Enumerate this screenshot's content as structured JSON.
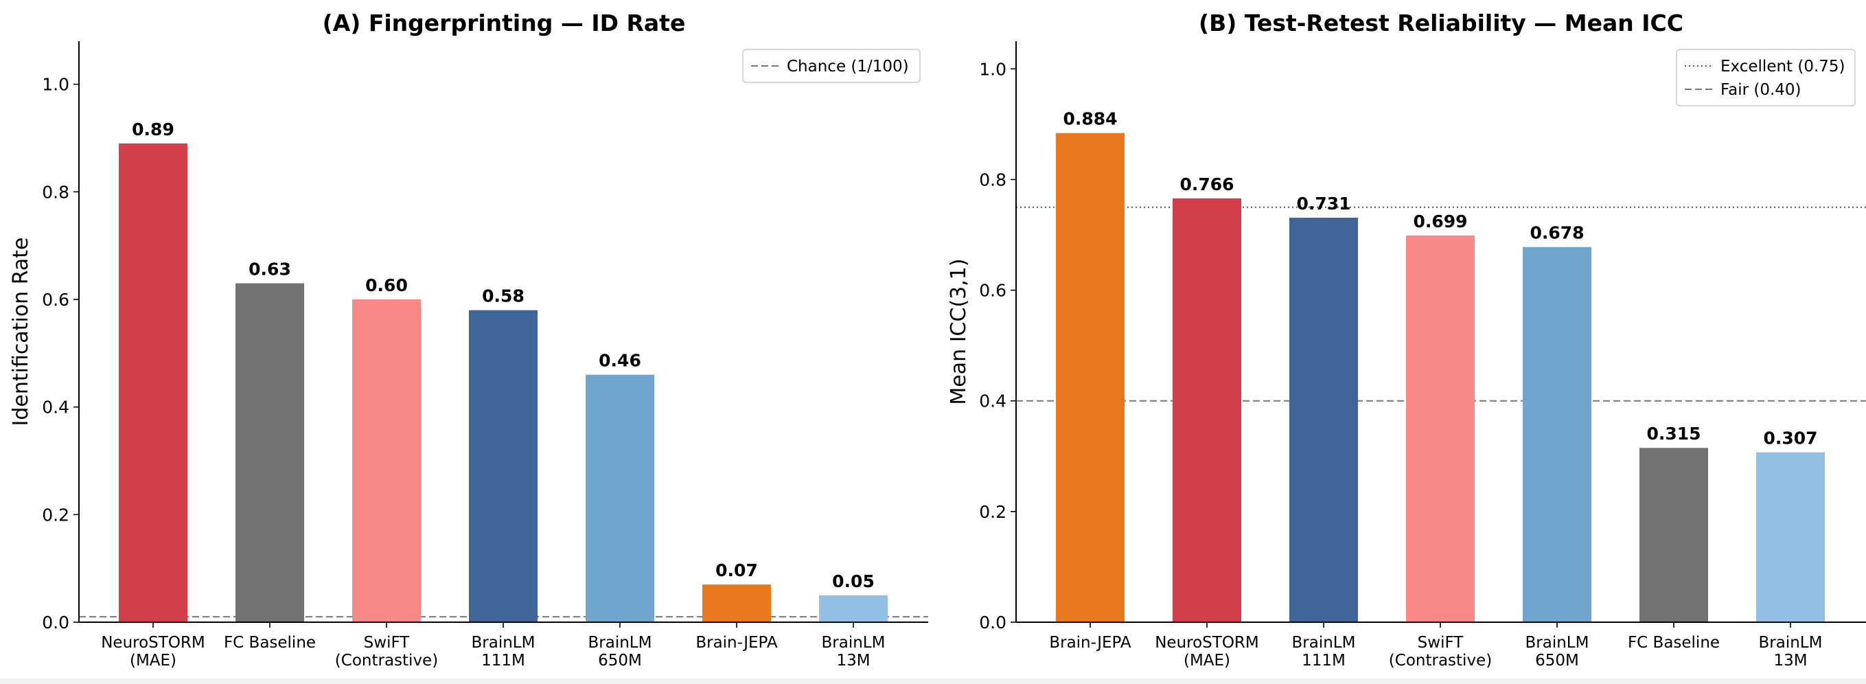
{
  "chart_data": [
    {
      "type": "bar",
      "title": "(A) Fingerprinting — ID Rate",
      "xlabel": "",
      "ylabel": "Identification Rate",
      "ylim": [
        0,
        1.08
      ],
      "yticks": [
        "0.0",
        "0.2",
        "0.4",
        "0.6",
        "0.8",
        "1.0"
      ],
      "ytick_values": [
        0,
        0.2,
        0.4,
        0.6,
        0.8,
        1.0
      ],
      "grid": false,
      "legend_position": "top-right",
      "categories": [
        [
          "NeuroSTORM",
          "(MAE)"
        ],
        [
          "FC Baseline"
        ],
        [
          "SwiFT",
          "(Contrastive)"
        ],
        [
          "BrainLM",
          "111M"
        ],
        [
          "BrainLM",
          "650M"
        ],
        [
          "Brain-JEPA"
        ],
        [
          "BrainLM",
          "13M"
        ]
      ],
      "values": [
        0.89,
        0.63,
        0.6,
        0.58,
        0.46,
        0.07,
        0.05
      ],
      "value_labels": [
        "0.89",
        "0.63",
        "0.60",
        "0.58",
        "0.46",
        "0.07",
        "0.05"
      ],
      "colors": [
        "#d33f49",
        "#737373",
        "#f98888",
        "#3e6699",
        "#70a5cd",
        "#e8781d",
        "#92bfe3"
      ],
      "reference_lines": [
        {
          "label": "Chance (1/100)",
          "value": 0.01,
          "style": "dashed",
          "color": "#777777"
        }
      ]
    },
    {
      "type": "bar",
      "title": "(B) Test-Retest Reliability — Mean ICC",
      "xlabel": "",
      "ylabel": "Mean ICC(3,1)",
      "ylim": [
        0,
        1.05
      ],
      "yticks": [
        "0.0",
        "0.2",
        "0.4",
        "0.6",
        "0.8",
        "1.0"
      ],
      "ytick_values": [
        0,
        0.2,
        0.4,
        0.6,
        0.8,
        1.0
      ],
      "grid": false,
      "legend_position": "top-right",
      "categories": [
        [
          "Brain-JEPA"
        ],
        [
          "NeuroSTORM",
          "(MAE)"
        ],
        [
          "BrainLM",
          "111M"
        ],
        [
          "SwiFT",
          "(Contrastive)"
        ],
        [
          "BrainLM",
          "650M"
        ],
        [
          "FC Baseline"
        ],
        [
          "BrainLM",
          "13M"
        ]
      ],
      "values": [
        0.884,
        0.766,
        0.731,
        0.699,
        0.678,
        0.315,
        0.307
      ],
      "value_labels": [
        "0.884",
        "0.766",
        "0.731",
        "0.699",
        "0.678",
        "0.315",
        "0.307"
      ],
      "colors": [
        "#e8781d",
        "#d33f49",
        "#3e6699",
        "#f98888",
        "#70a5cd",
        "#737373",
        "#92bfe3"
      ],
      "reference_lines": [
        {
          "label": "Excellent (0.75)",
          "value": 0.75,
          "style": "dotted",
          "color": "#555555"
        },
        {
          "label": "Fair (0.40)",
          "value": 0.4,
          "style": "dashed",
          "color": "#777777"
        }
      ]
    }
  ]
}
